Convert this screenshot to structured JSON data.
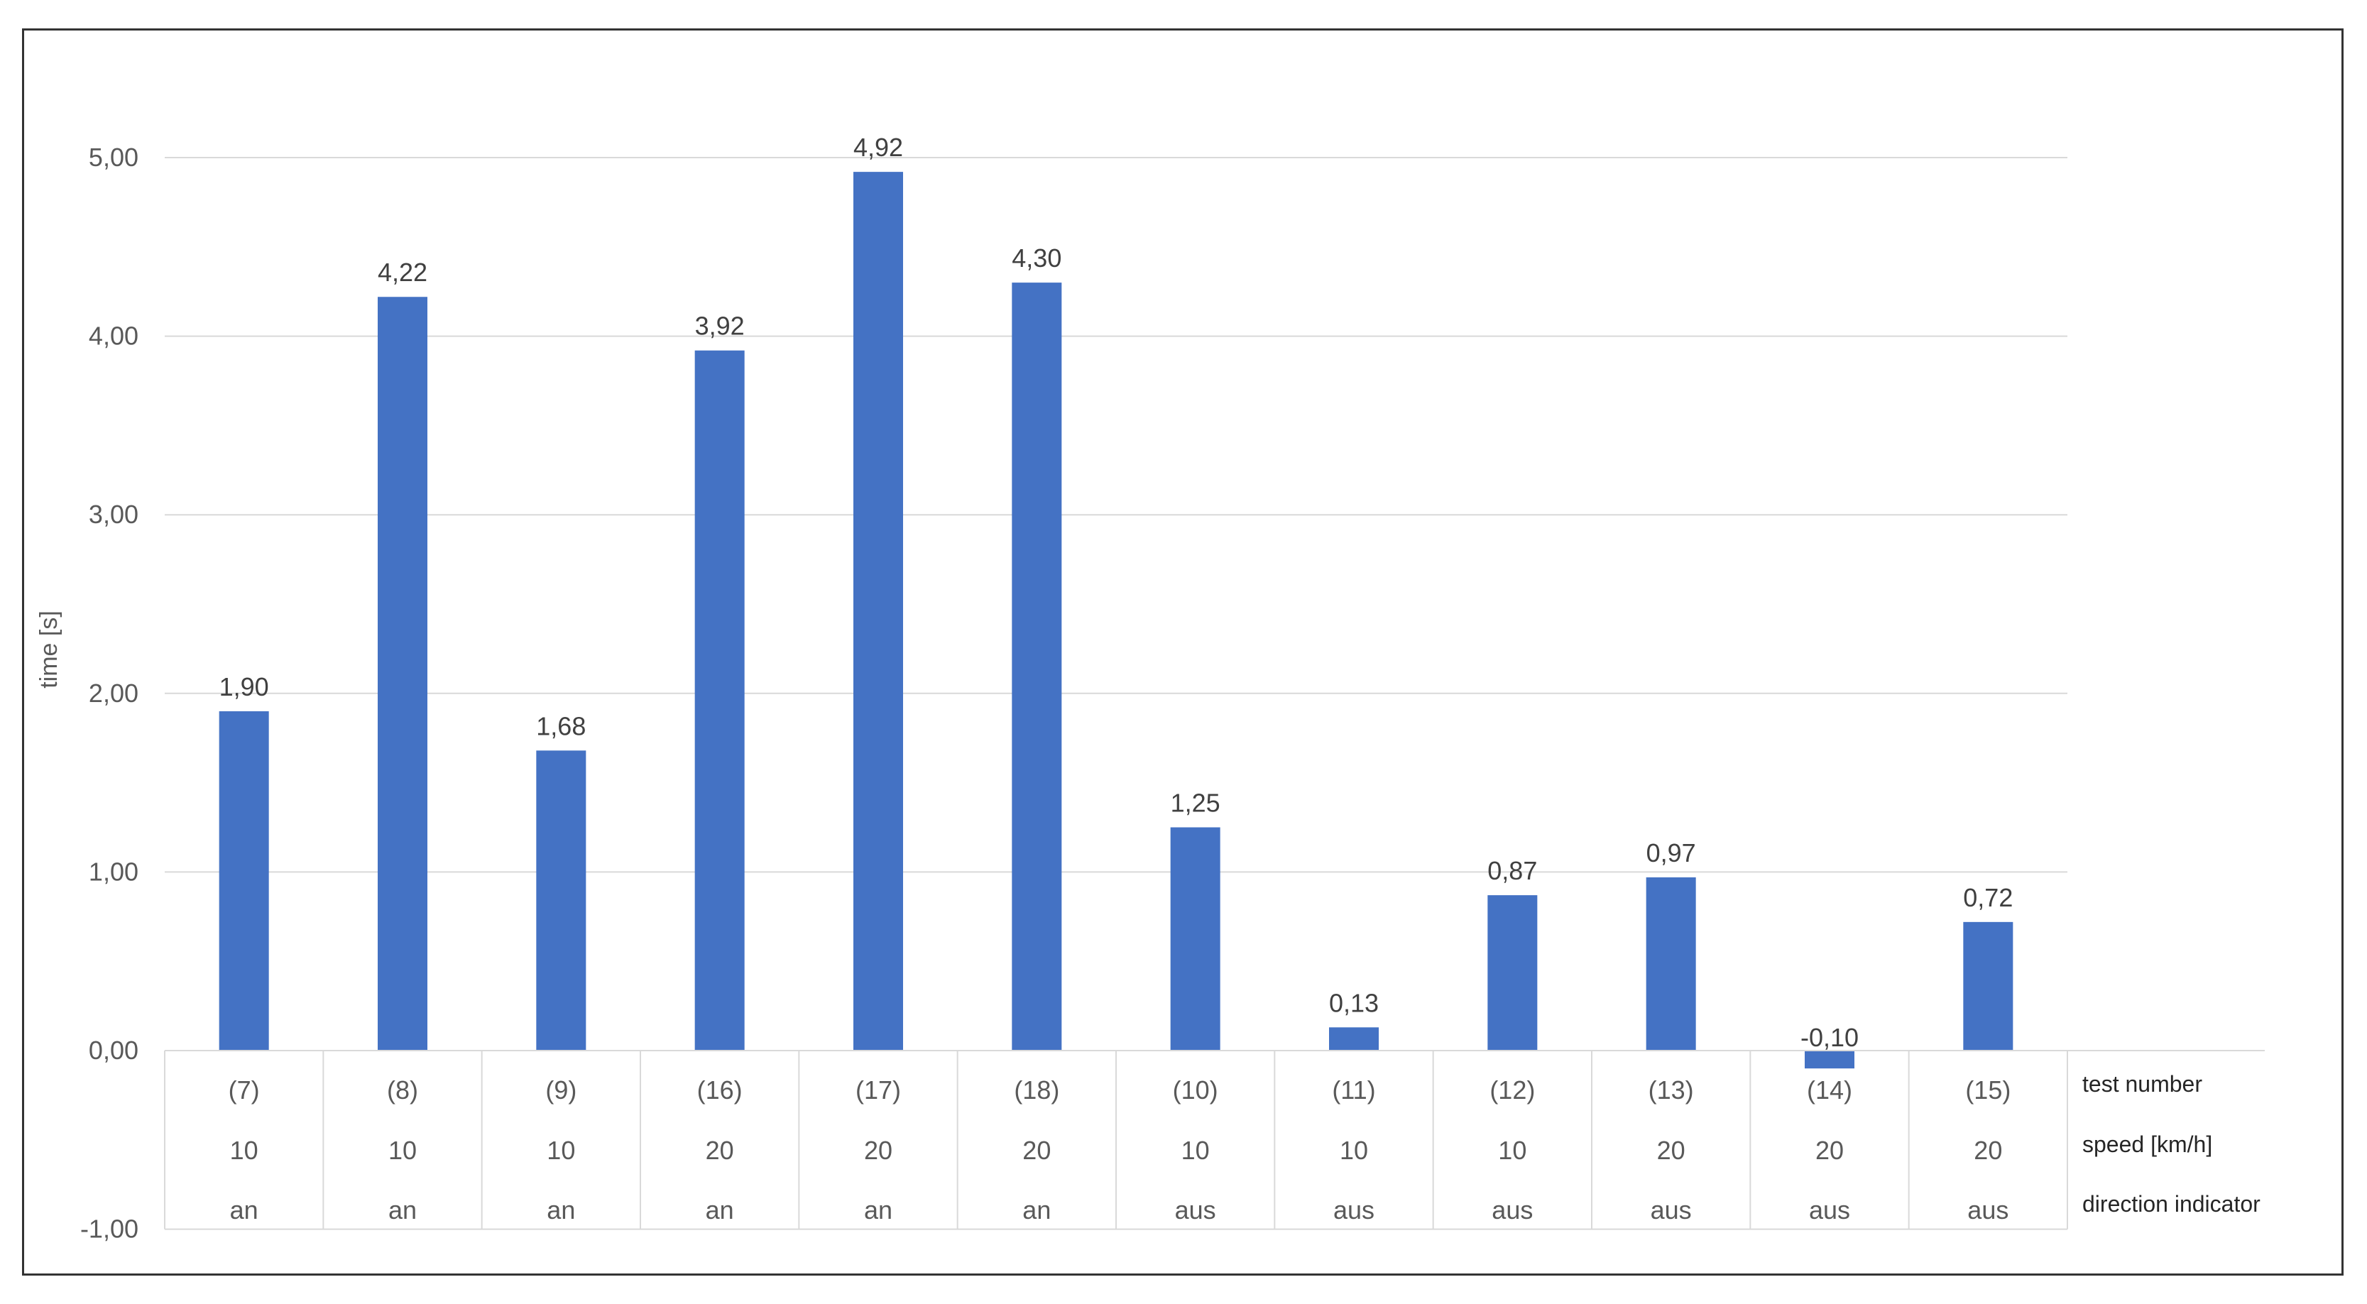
{
  "chart_data": {
    "type": "bar",
    "ylabel": "time [s]",
    "ylim": [
      -1,
      5
    ],
    "ytick_step": 1,
    "ytick_labels": [
      "-1,00",
      "0,00",
      "1,00",
      "2,00",
      "3,00",
      "4,00",
      "5,00"
    ],
    "grid": true,
    "bar_color": "#4472C4",
    "categories": [
      {
        "test": "(7)",
        "speed": "10",
        "indicator": "an"
      },
      {
        "test": "(8)",
        "speed": "10",
        "indicator": "an"
      },
      {
        "test": "(9)",
        "speed": "10",
        "indicator": "an"
      },
      {
        "test": "(16)",
        "speed": "20",
        "indicator": "an"
      },
      {
        "test": "(17)",
        "speed": "20",
        "indicator": "an"
      },
      {
        "test": "(18)",
        "speed": "20",
        "indicator": "an"
      },
      {
        "test": "(10)",
        "speed": "10",
        "indicator": "aus"
      },
      {
        "test": "(11)",
        "speed": "10",
        "indicator": "aus"
      },
      {
        "test": "(12)",
        "speed": "10",
        "indicator": "aus"
      },
      {
        "test": "(13)",
        "speed": "20",
        "indicator": "aus"
      },
      {
        "test": "(14)",
        "speed": "20",
        "indicator": "aus"
      },
      {
        "test": "(15)",
        "speed": "20",
        "indicator": "aus"
      }
    ],
    "values": [
      1.9,
      4.22,
      1.68,
      3.92,
      4.92,
      4.3,
      1.25,
      0.13,
      0.87,
      0.97,
      -0.1,
      0.72
    ],
    "value_labels": [
      "1,90",
      "4,22",
      "1,68",
      "3,92",
      "4,92",
      "4,30",
      "1,25",
      "0,13",
      "0,87",
      "0,97",
      "-0,10",
      "0,72"
    ],
    "row_labels": [
      "test number",
      "speed [km/h]",
      "direction indicator"
    ]
  }
}
